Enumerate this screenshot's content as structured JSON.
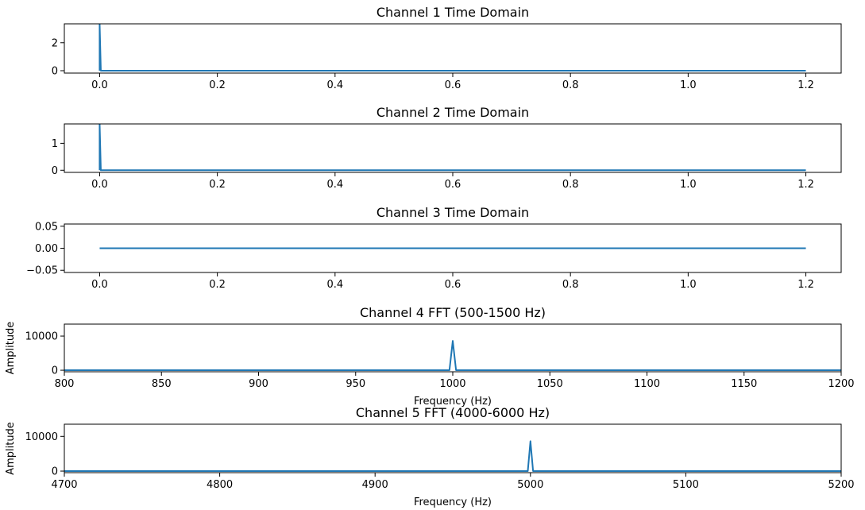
{
  "style": {
    "line_color": "#1f77b4",
    "background": "#ffffff"
  },
  "chart_data": [
    {
      "type": "line",
      "title": "Channel 1 Time Domain",
      "xlabel": "",
      "ylabel": "",
      "xlim": [
        -0.06,
        1.26
      ],
      "ylim": [
        -0.17,
        3.35
      ],
      "xticks": [
        0.0,
        0.2,
        0.4,
        0.6,
        0.8,
        1.0,
        1.2
      ],
      "xtick_labels": [
        "0.0",
        "0.2",
        "0.4",
        "0.6",
        "0.8",
        "1.0",
        "1.2"
      ],
      "yticks": [
        0,
        2
      ],
      "ytick_labels": [
        "0",
        "2"
      ],
      "grid": false,
      "series": [
        {
          "x": [
            0,
            0,
            0.002,
            1.2
          ],
          "y": [
            0,
            3.3,
            0,
            0
          ]
        }
      ]
    },
    {
      "type": "line",
      "title": "Channel 2 Time Domain",
      "xlabel": "",
      "ylabel": "",
      "xlim": [
        -0.06,
        1.26
      ],
      "ylim": [
        -0.08,
        1.72
      ],
      "xticks": [
        0.0,
        0.2,
        0.4,
        0.6,
        0.8,
        1.0,
        1.2
      ],
      "xtick_labels": [
        "0.0",
        "0.2",
        "0.4",
        "0.6",
        "0.8",
        "1.0",
        "1.2"
      ],
      "yticks": [
        0,
        1
      ],
      "ytick_labels": [
        "0",
        "1"
      ],
      "grid": false,
      "series": [
        {
          "x": [
            0,
            0,
            0.002,
            1.2
          ],
          "y": [
            0,
            1.7,
            0,
            0
          ]
        }
      ]
    },
    {
      "type": "line",
      "title": "Channel 3 Time Domain",
      "xlabel": "",
      "ylabel": "",
      "xlim": [
        -0.06,
        1.26
      ],
      "ylim": [
        -0.055,
        0.055
      ],
      "xticks": [
        0.0,
        0.2,
        0.4,
        0.6,
        0.8,
        1.0,
        1.2
      ],
      "xtick_labels": [
        "0.0",
        "0.2",
        "0.4",
        "0.6",
        "0.8",
        "1.0",
        "1.2"
      ],
      "yticks": [
        -0.05,
        0.0,
        0.05
      ],
      "ytick_labels": [
        "−0.05",
        "0.00",
        "0.05"
      ],
      "grid": false,
      "series": [
        {
          "x": [
            0,
            1.2
          ],
          "y": [
            0,
            0
          ]
        }
      ]
    },
    {
      "type": "line",
      "title": "Channel 4 FFT (500-1500 Hz)",
      "xlabel": "Frequency (Hz)",
      "ylabel": "Amplitude",
      "xlim": [
        800,
        1200
      ],
      "ylim": [
        -450,
        13500
      ],
      "xticks": [
        800,
        850,
        900,
        950,
        1000,
        1050,
        1100,
        1150,
        1200
      ],
      "xtick_labels": [
        "800",
        "850",
        "900",
        "950",
        "1000",
        "1050",
        "1100",
        "1150",
        "1200"
      ],
      "yticks": [
        0,
        10000
      ],
      "ytick_labels": [
        "0",
        "10000"
      ],
      "grid": false,
      "series": [
        {
          "x": [
            790,
            998.3,
            1000,
            1001.7,
            1210
          ],
          "y": [
            0,
            0,
            8600,
            0,
            0
          ]
        }
      ]
    },
    {
      "type": "line",
      "title": "Channel 5 FFT (4000-6000 Hz)",
      "xlabel": "Frequency (Hz)",
      "ylabel": "Amplitude",
      "xlim": [
        4700,
        5200
      ],
      "ylim": [
        -450,
        13500
      ],
      "xticks": [
        4700,
        4800,
        4900,
        5000,
        5100,
        5200
      ],
      "xtick_labels": [
        "4700",
        "4800",
        "4900",
        "5000",
        "5100",
        "5200"
      ],
      "yticks": [
        0,
        10000
      ],
      "ytick_labels": [
        "0",
        "10000"
      ],
      "grid": false,
      "series": [
        {
          "x": [
            4690,
            4998.3,
            5000,
            5001.7,
            5210
          ],
          "y": [
            0,
            0,
            8600,
            0,
            0
          ]
        }
      ]
    }
  ]
}
